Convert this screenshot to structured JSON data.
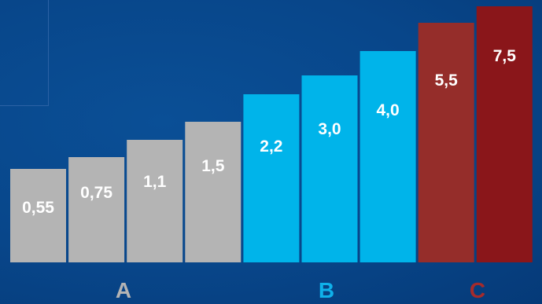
{
  "chart_data": {
    "type": "bar",
    "categories": [
      "0,55",
      "0,75",
      "1,1",
      "1,5",
      "2,2",
      "3,0",
      "4,0",
      "5,5",
      "7,5"
    ],
    "values": [
      0.55,
      0.75,
      1.1,
      1.5,
      2.2,
      3.0,
      4.0,
      5.5,
      7.5
    ],
    "value_labels": [
      "0,55",
      "0,75",
      "1,1",
      "1,5",
      "2,2",
      "3,0",
      "4,0",
      "5,5",
      "7,5"
    ],
    "groups": [
      {
        "label": "A",
        "color": "#b4b4b4",
        "label_color": "#b4b4b4",
        "members": [
          0,
          1,
          2,
          3
        ]
      },
      {
        "label": "B",
        "color": "#00b4ea",
        "label_color": "#0fb1ea",
        "members": [
          4,
          5,
          6
        ]
      },
      {
        "label": "C",
        "color": "#8e2124",
        "label_color": "#a52b2b",
        "members": [
          7,
          8
        ]
      }
    ],
    "bar_colors": [
      "#b4b4b4",
      "#b4b4b4",
      "#b4b4b4",
      "#b4b4b4",
      "#00b4ea",
      "#00b4ea",
      "#00b4ea",
      "#952d2a",
      "#8a161a"
    ],
    "title": "",
    "xlabel": "",
    "ylabel": "",
    "grid": false,
    "legend": "none"
  }
}
